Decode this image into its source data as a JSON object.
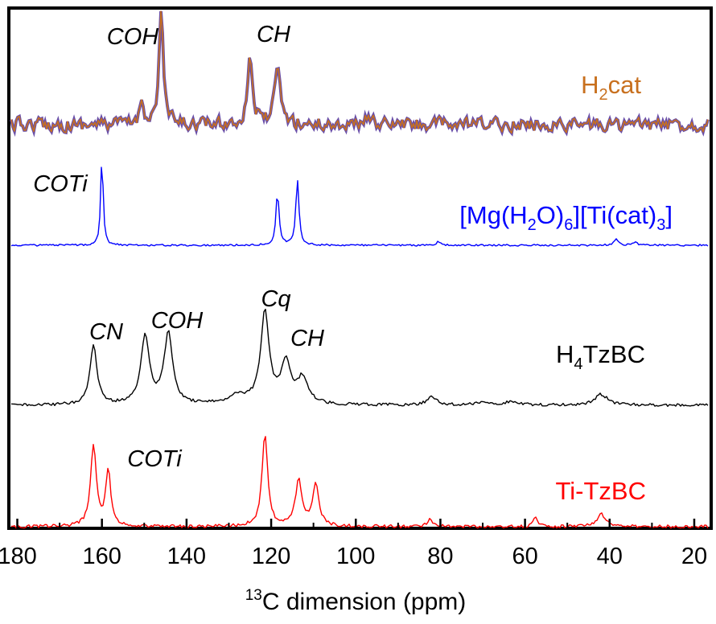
{
  "chart_data": {
    "type": "line",
    "xlabel": "dimension (ppm)",
    "xlabel_sup": "13",
    "xlabel_nucleus": "C",
    "xlim": [
      182,
      16
    ],
    "x_reversed": true,
    "xticks": [
      180,
      160,
      140,
      120,
      100,
      80,
      60,
      40,
      20
    ],
    "grid": false,
    "legend": "labels placed beside each trace, right side",
    "series": [
      {
        "name": "H2cat",
        "label_parts": [
          "H",
          "2",
          "cat"
        ],
        "color": "#c8701e",
        "peaks": [
          {
            "ppm": 146,
            "height": 1.0,
            "width": 0.6
          },
          {
            "ppm": 125,
            "height": 0.62,
            "width": 0.7
          },
          {
            "ppm": 118.5,
            "height": 0.45,
            "width": 0.9
          },
          {
            "ppm": 150.5,
            "height": 0.22,
            "width": 0.6
          },
          {
            "ppm": 97,
            "height": 0.12,
            "width": 0.5
          }
        ],
        "annotations": [
          {
            "text": "COH",
            "ppm": 146
          },
          {
            "text": "CH",
            "ppm": 122
          }
        ]
      },
      {
        "name": "[Mg(H2O)6][Ti(cat)3]",
        "label_parts": [
          "[Mg(H",
          "2",
          "O)",
          "6",
          "][Ti(cat)",
          "3",
          "]"
        ],
        "color": "#0000ff",
        "peaks": [
          {
            "ppm": 160,
            "height": 1.0,
            "width": 0.35
          },
          {
            "ppm": 118.5,
            "height": 0.58,
            "width": 0.45
          },
          {
            "ppm": 113.8,
            "height": 0.72,
            "width": 0.45
          },
          {
            "ppm": 80.5,
            "height": 0.04,
            "width": 0.5
          },
          {
            "ppm": 38.5,
            "height": 0.07,
            "width": 0.6
          },
          {
            "ppm": 34,
            "height": 0.04,
            "width": 0.6
          }
        ],
        "annotations": [
          {
            "text": "COTi",
            "ppm": 160
          }
        ]
      },
      {
        "name": "H4TzBC",
        "label_parts": [
          "H",
          "4",
          "TzBC"
        ],
        "color": "#000000",
        "peaks": [
          {
            "ppm": 162,
            "height": 0.65,
            "width": 1.0
          },
          {
            "ppm": 149.8,
            "height": 0.75,
            "width": 1.2
          },
          {
            "ppm": 144.3,
            "height": 0.78,
            "width": 1.2
          },
          {
            "ppm": 121.5,
            "height": 1.0,
            "width": 1.2
          },
          {
            "ppm": 116.5,
            "height": 0.45,
            "width": 1.4
          },
          {
            "ppm": 112.5,
            "height": 0.28,
            "width": 1.5
          },
          {
            "ppm": 128,
            "height": 0.1,
            "width": 2.5
          },
          {
            "ppm": 82,
            "height": 0.1,
            "width": 1.2
          },
          {
            "ppm": 70,
            "height": 0.04,
            "width": 1.5
          },
          {
            "ppm": 63,
            "height": 0.04,
            "width": 2.0
          },
          {
            "ppm": 42,
            "height": 0.12,
            "width": 1.8
          }
        ],
        "annotations": [
          {
            "text": "CN",
            "ppm": 162
          },
          {
            "text": "COH",
            "ppm": 147
          },
          {
            "text": "Cq",
            "ppm": 121.5
          },
          {
            "text": "CH",
            "ppm": 115
          }
        ]
      },
      {
        "name": "Ti-TzBC",
        "label_parts": [
          "Ti-TzBC"
        ],
        "color": "#ff0000",
        "peaks": [
          {
            "ppm": 162,
            "height": 0.88,
            "width": 0.8
          },
          {
            "ppm": 158.5,
            "height": 0.6,
            "width": 0.7
          },
          {
            "ppm": 121.5,
            "height": 1.0,
            "width": 0.8
          },
          {
            "ppm": 113.5,
            "height": 0.5,
            "width": 0.9
          },
          {
            "ppm": 109.5,
            "height": 0.45,
            "width": 0.9
          },
          {
            "ppm": 82.5,
            "height": 0.08,
            "width": 0.8
          },
          {
            "ppm": 57.5,
            "height": 0.12,
            "width": 0.5
          },
          {
            "ppm": 42,
            "height": 0.14,
            "width": 1.2
          }
        ],
        "annotations": [
          {
            "text": "COTi",
            "ppm": 152
          }
        ]
      }
    ]
  }
}
